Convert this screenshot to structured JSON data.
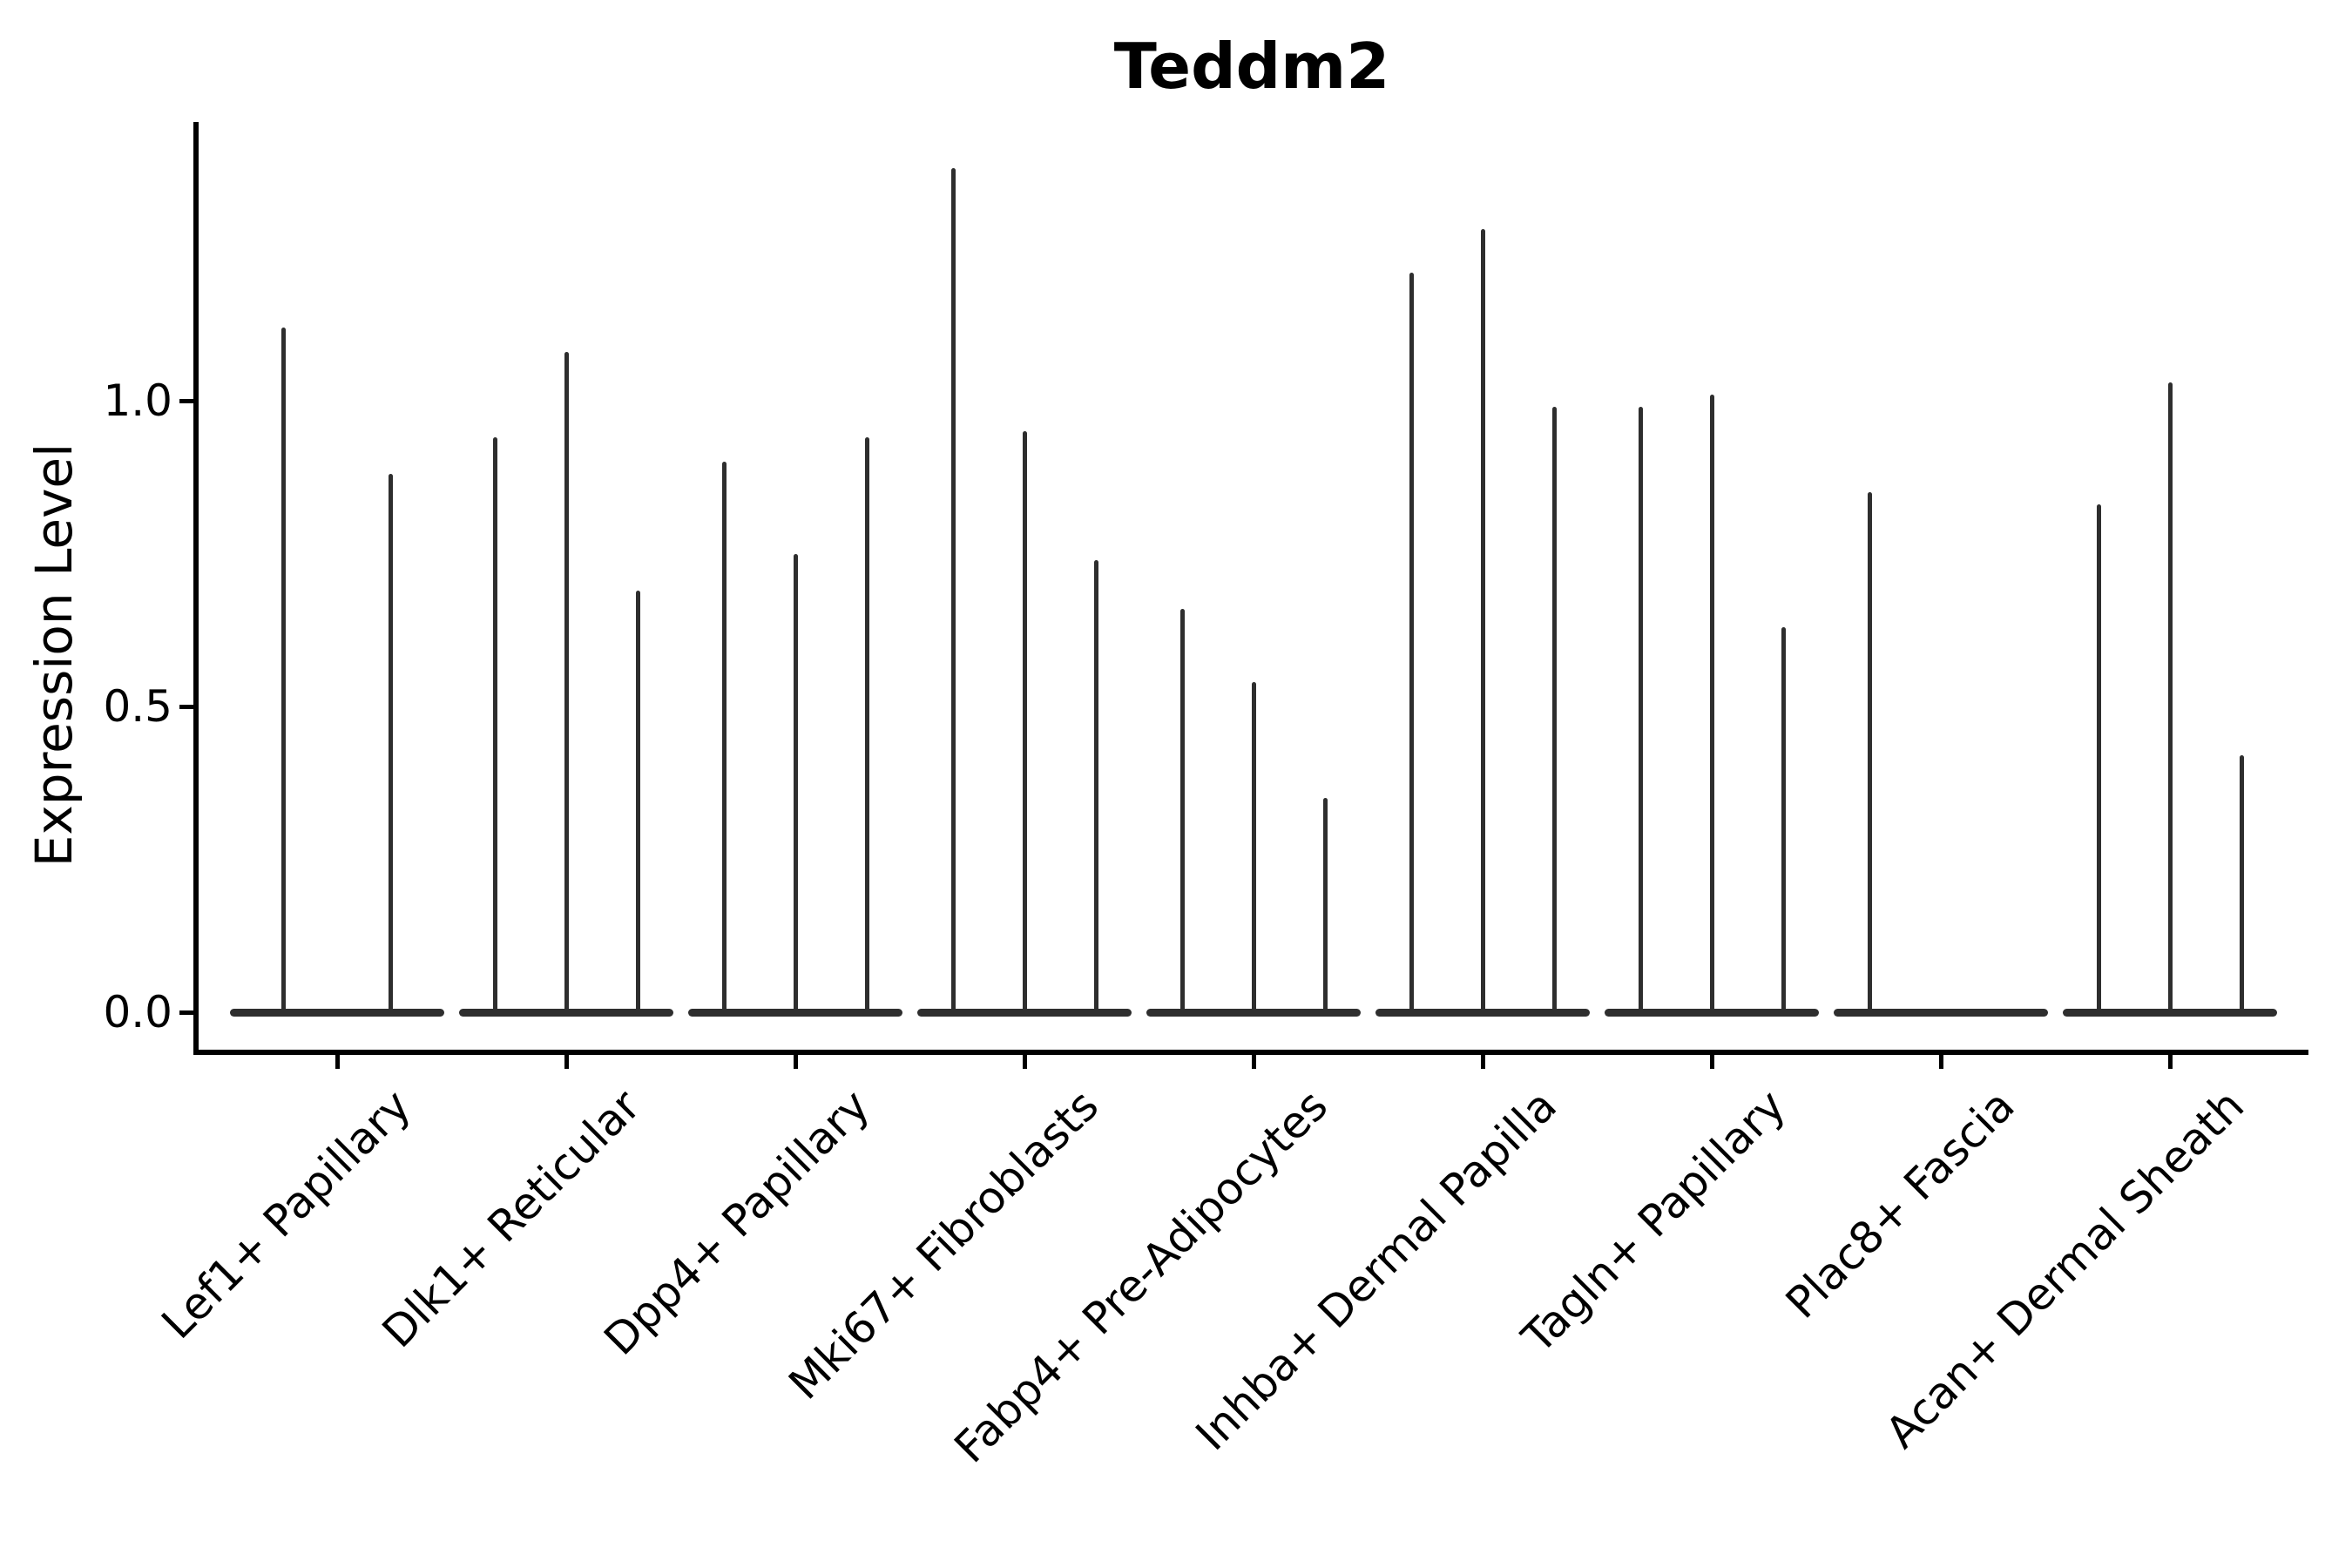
{
  "title": "Teddm2",
  "y_axis": {
    "label": "Expression Level",
    "tick_labels": [
      "0.0",
      "0.5",
      "1.0"
    ],
    "tick_values": [
      0.0,
      0.5,
      1.0
    ]
  },
  "colors": {
    "violin_fill": "#2e2e2e",
    "axis": "#000000",
    "background": "#ffffff"
  },
  "chart_data": {
    "type": "violin",
    "title": "Teddm2",
    "xlabel": "",
    "ylabel": "Expression Level",
    "ylim": [
      0,
      1.46
    ],
    "yticks": [
      0.0,
      0.5,
      1.0
    ],
    "grid": false,
    "legend": false,
    "description": "Stacked thin violin plot; each category holds multiple near-zero-width violins (flat body at 0 with a thin vertical spike up to its maximum expression value).",
    "categories": [
      "Lef1+ Papillary",
      "Dlk1+ Reticular",
      "Dpp4+ Papillary",
      "Mki67+ Fibroblasts",
      "Fabp4+ Pre-Adipocytes",
      "Inhba+ Dermal Papilla",
      "Tagln+ Papillary",
      "Plac8+ Fascia",
      "Acan+ Dermal Sheath"
    ],
    "groups": [
      {
        "category": "Lef1+ Papillary",
        "violin_maxima": [
          1.12,
          0.88
        ]
      },
      {
        "category": "Dlk1+ Reticular",
        "violin_maxima": [
          0.94,
          1.08,
          0.69
        ]
      },
      {
        "category": "Dpp4+ Papillary",
        "violin_maxima": [
          0.9,
          0.75,
          0.94
        ]
      },
      {
        "category": "Mki67+ Fibroblasts",
        "violin_maxima": [
          1.38,
          0.95,
          0.74
        ]
      },
      {
        "category": "Fabp4+ Pre-Adipocytes",
        "violin_maxima": [
          0.66,
          0.54,
          0.35
        ]
      },
      {
        "category": "Inhba+ Dermal Papilla",
        "violin_maxima": [
          1.21,
          1.28,
          0.99
        ]
      },
      {
        "category": "Tagln+ Papillary",
        "violin_maxima": [
          0.99,
          1.01,
          0.63
        ]
      },
      {
        "category": "Plac8+ Fascia",
        "violin_maxima": [
          0.85,
          0.0,
          0.0
        ]
      },
      {
        "category": "Acan+ Dermal Sheath",
        "violin_maxima": [
          0.83,
          1.03,
          0.42
        ]
      }
    ]
  }
}
